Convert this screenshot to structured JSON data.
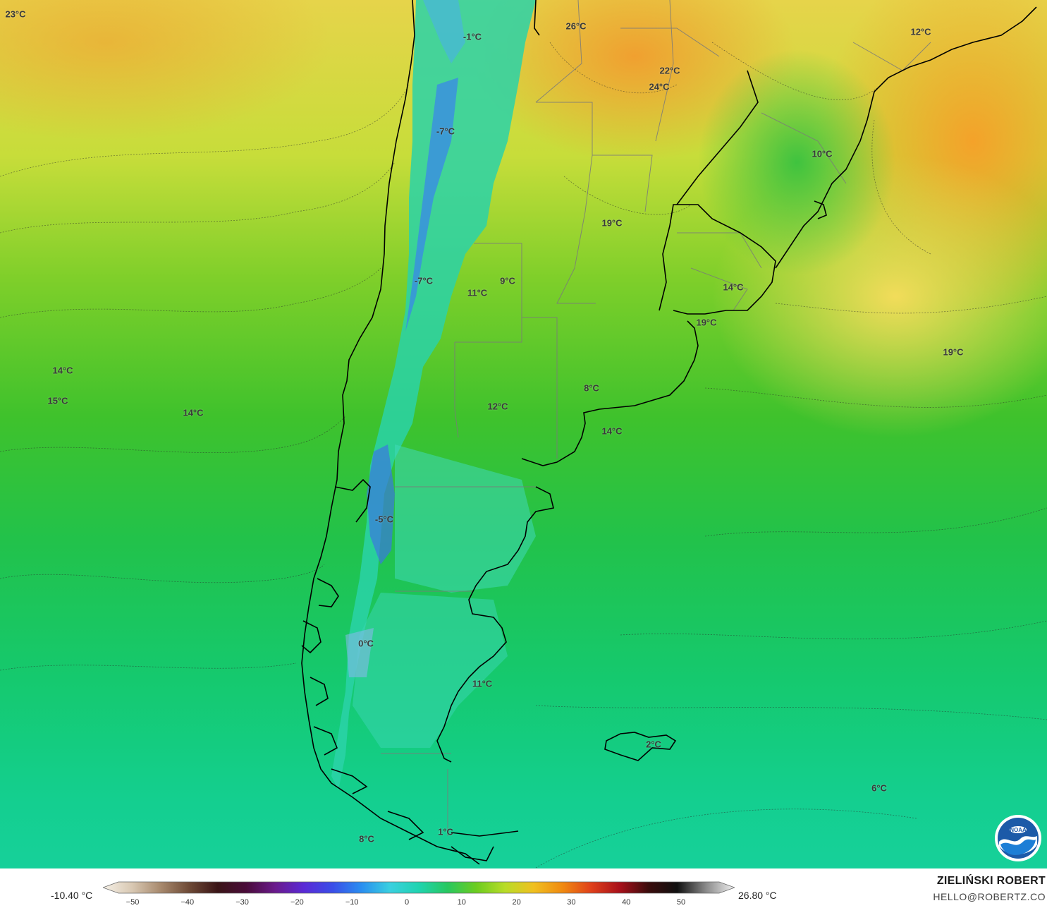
{
  "map": {
    "temperature_labels": [
      {
        "id": "lbl-1",
        "text": "23°C"
      },
      {
        "id": "lbl-2",
        "text": "-1°C"
      },
      {
        "id": "lbl-3",
        "text": "26°C"
      },
      {
        "id": "lbl-4",
        "text": "12°C"
      },
      {
        "id": "lbl-5",
        "text": "22°C"
      },
      {
        "id": "lbl-6",
        "text": "24°C"
      },
      {
        "id": "lbl-7",
        "text": "-7°C"
      },
      {
        "id": "lbl-8",
        "text": "10°C"
      },
      {
        "id": "lbl-9",
        "text": "19°C"
      },
      {
        "id": "lbl-10",
        "text": "-7°C"
      },
      {
        "id": "lbl-11",
        "text": "11°C"
      },
      {
        "id": "lbl-12",
        "text": "9°C"
      },
      {
        "id": "lbl-13",
        "text": "14°C"
      },
      {
        "id": "lbl-14",
        "text": "19°C"
      },
      {
        "id": "lbl-15",
        "text": "19°C"
      },
      {
        "id": "lbl-16",
        "text": "14°C"
      },
      {
        "id": "lbl-17",
        "text": "15°C"
      },
      {
        "id": "lbl-18",
        "text": "14°C"
      },
      {
        "id": "lbl-19",
        "text": "8°C"
      },
      {
        "id": "lbl-20",
        "text": "12°C"
      },
      {
        "id": "lbl-21",
        "text": "14°C"
      },
      {
        "id": "lbl-22",
        "text": "-5°C"
      },
      {
        "id": "lbl-23",
        "text": "0°C"
      },
      {
        "id": "lbl-24",
        "text": "11°C"
      },
      {
        "id": "lbl-25",
        "text": "2°C"
      },
      {
        "id": "lbl-26",
        "text": "6°C"
      },
      {
        "id": "lbl-27",
        "text": "1°C"
      },
      {
        "id": "lbl-28",
        "text": "8°C"
      }
    ]
  },
  "legend": {
    "min_label": "-10.40 °C",
    "max_label": "26.80 °C",
    "ticks": [
      "−50",
      "−40",
      "−30",
      "−20",
      "−10",
      "0",
      "10",
      "20",
      "30",
      "40",
      "50"
    ],
    "colors": [
      "#f5f0e6",
      "#d9c9b4",
      "#a88a6e",
      "#6e4a36",
      "#3a1416",
      "#4a0c3a",
      "#6a1a8c",
      "#5a2ad6",
      "#3a4ee8",
      "#2a8ef0",
      "#3ad0e0",
      "#20d4b0",
      "#28c860",
      "#6ccc20",
      "#b8dc28",
      "#f0c020",
      "#f08a10",
      "#e0401a",
      "#a8101a",
      "#3a0c0c",
      "#101010",
      "#8a8a8a",
      "#f0f0f0"
    ]
  },
  "credit": {
    "name": "ZIELIŃSKI ROBERT",
    "email": "HELLO@ROBERTZ.CO"
  },
  "logo": {
    "icon": "noaa-logo",
    "text": "NOAA"
  }
}
